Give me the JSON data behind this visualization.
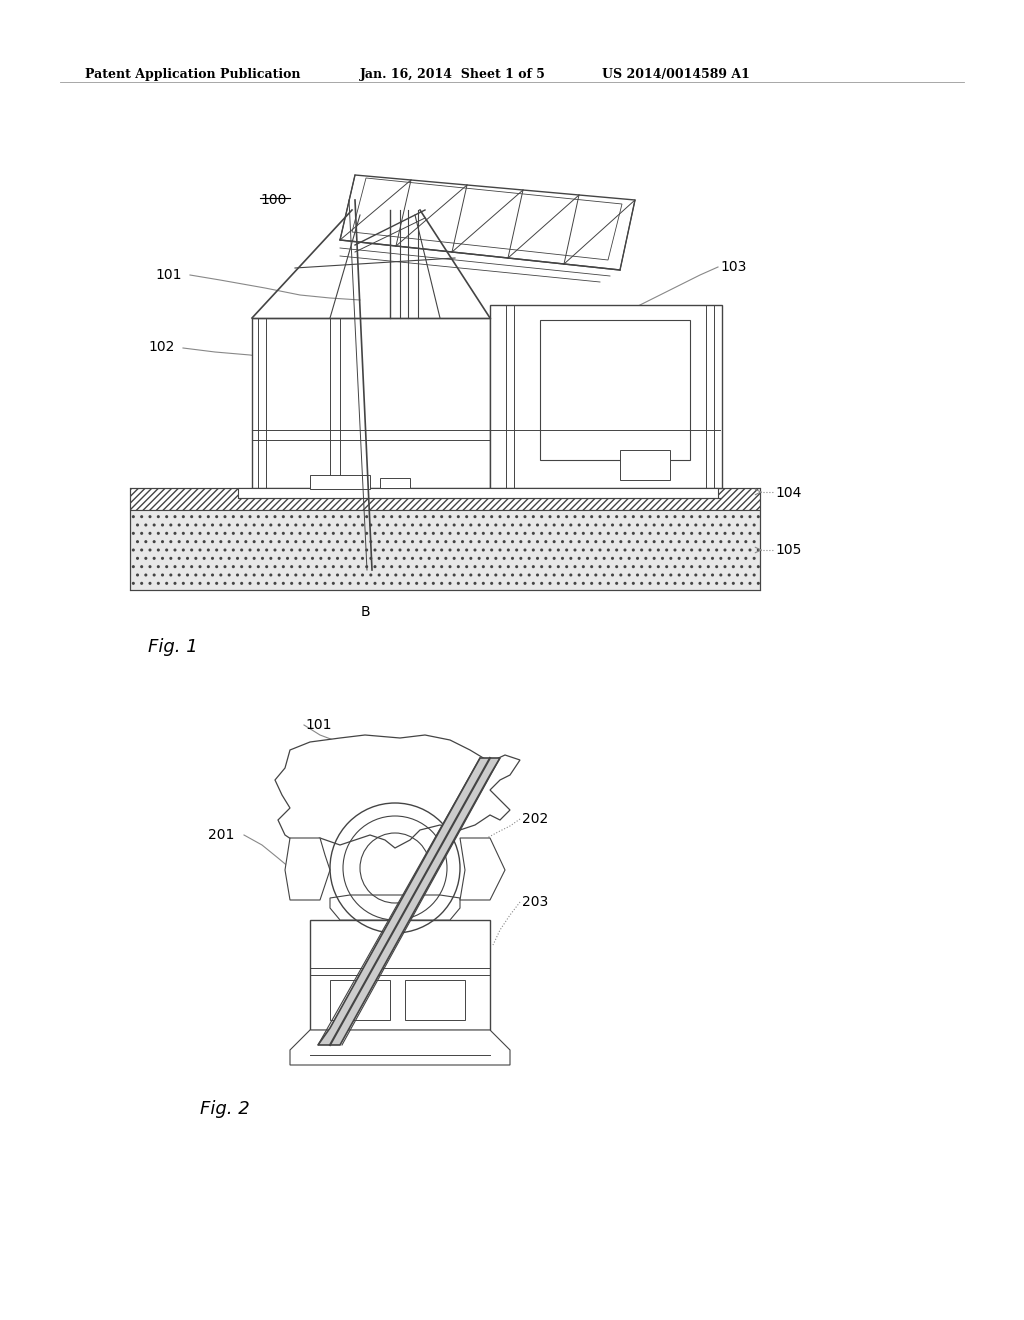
{
  "bg_color": "#ffffff",
  "header_left": "Patent Application Publication",
  "header_center": "Jan. 16, 2014  Sheet 1 of 5",
  "header_right": "US 2014/0014589 A1",
  "fig1_label": "Fig. 1",
  "fig2_label": "Fig. 2",
  "line_color": "#444444",
  "text_color": "#000000",
  "leader_color": "#888888",
  "hatch_color": "#777777"
}
